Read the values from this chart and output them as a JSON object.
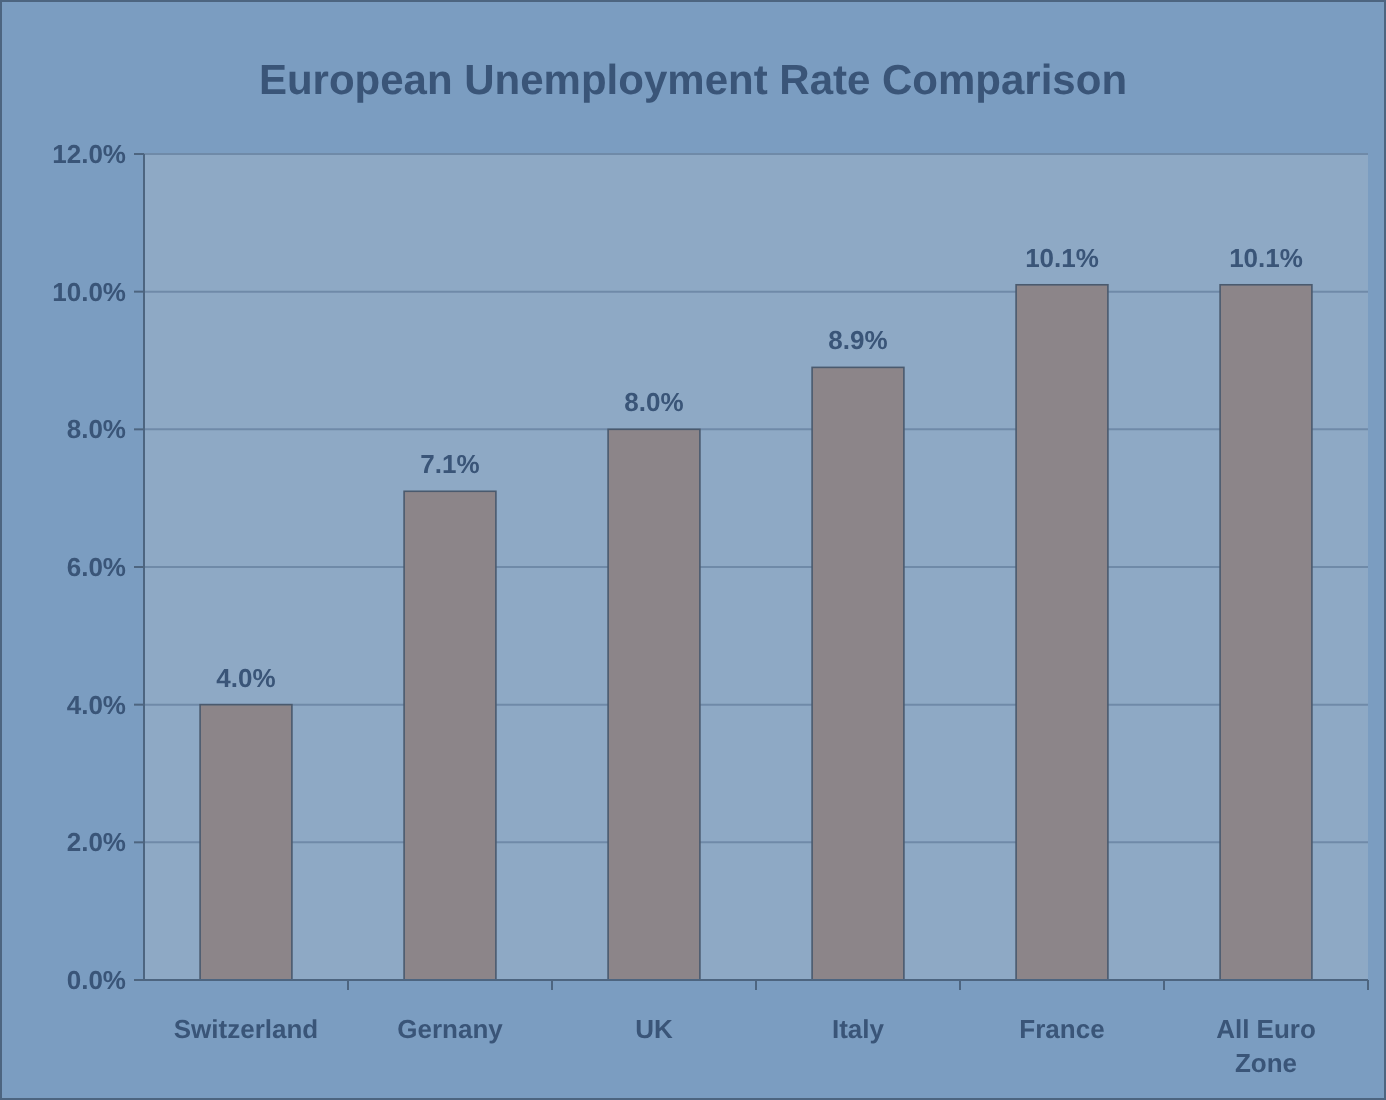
{
  "chart_data": {
    "type": "bar",
    "title": "European Unemployment Rate Comparison",
    "categories": [
      "Switzerland",
      "Gernany",
      "UK",
      "Italy",
      "France",
      "All Euro Zone"
    ],
    "values": [
      4.0,
      7.1,
      8.0,
      8.9,
      10.1,
      10.1
    ],
    "value_labels": [
      "4.0%",
      "7.1%",
      "8.0%",
      "8.9%",
      "10.1%",
      "10.1%"
    ],
    "color": "#8c8589",
    "ylim": [
      0,
      12
    ],
    "yticks": [
      {
        "value": 0,
        "label": "0.0%"
      },
      {
        "value": 2,
        "label": "2.0%"
      },
      {
        "value": 4,
        "label": "4.0%"
      },
      {
        "value": 6,
        "label": "6.0%"
      },
      {
        "value": 8,
        "label": "8.0%"
      },
      {
        "value": 10,
        "label": "10.0%"
      },
      {
        "value": 12,
        "label": "12.0%"
      }
    ],
    "grid": "y"
  }
}
